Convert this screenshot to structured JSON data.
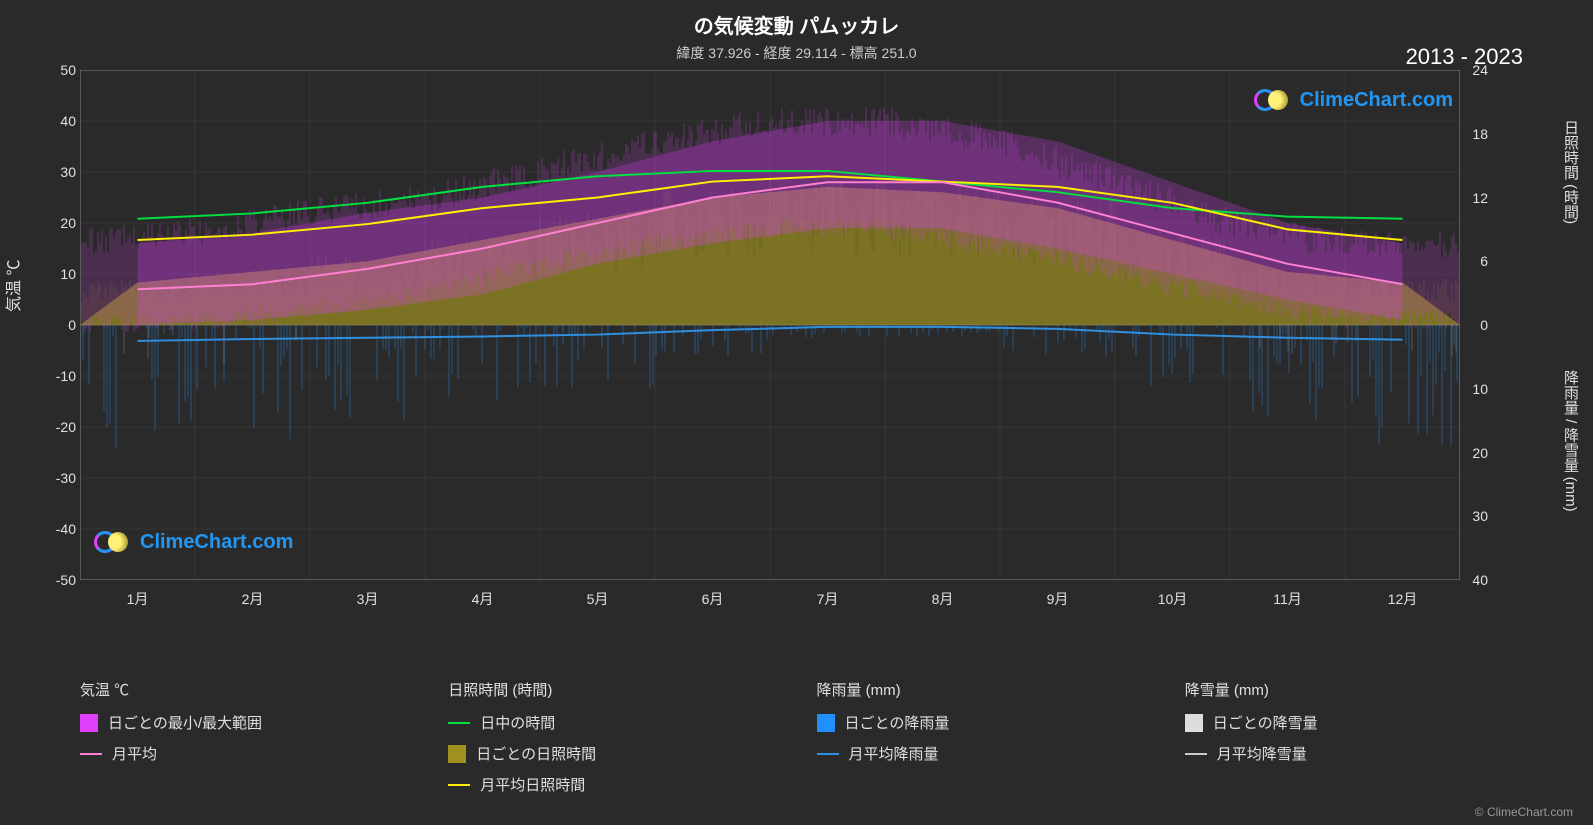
{
  "title": "の気候変動 パムッカレ",
  "subtitle": "緯度 37.926 - 経度 29.114 - 標高 251.0",
  "year_range": "2013 - 2023",
  "credit": "© ClimeChart.com",
  "watermark_text": "ClimeChart.com",
  "chart": {
    "background_color": "#2a2a2a",
    "plot_bg": "#2a2a2a",
    "grid_color": "#555555",
    "axis_color": "#888888",
    "text_color": "#e0e0e0",
    "months": [
      "1月",
      "2月",
      "3月",
      "4月",
      "5月",
      "6月",
      "7月",
      "8月",
      "9月",
      "10月",
      "11月",
      "12月"
    ],
    "left_axis": {
      "label": "気温 ℃",
      "min": -50,
      "max": 50,
      "step": 10,
      "ticks": [
        50,
        40,
        30,
        20,
        10,
        0,
        -10,
        -20,
        -30,
        -40,
        -50
      ]
    },
    "right_axis_top": {
      "label": "日照時間 (時間)",
      "min": 0,
      "max": 24,
      "step": 6,
      "ticks": [
        24,
        18,
        12,
        6,
        0
      ]
    },
    "right_axis_bottom": {
      "label": "降雨量 / 降雪量 (mm)",
      "min": 0,
      "max": 40,
      "step": 10,
      "ticks": [
        0,
        10,
        20,
        30,
        40
      ]
    },
    "series": {
      "temp_range": {
        "color": "#e040fb",
        "fill_opacity": 0.6,
        "min": [
          0,
          1,
          3,
          6,
          12,
          16,
          19,
          19,
          15,
          10,
          5,
          1
        ],
        "max": [
          16,
          18,
          22,
          25,
          30,
          36,
          40,
          40,
          36,
          28,
          20,
          16
        ]
      },
      "temp_avg": {
        "color": "#ff80d0",
        "width": 2,
        "values": [
          7,
          8,
          11,
          15,
          20,
          25,
          28,
          28,
          24,
          18,
          12,
          8
        ]
      },
      "daylight": {
        "color": "#00e040",
        "width": 2,
        "values": [
          10,
          10.5,
          11.5,
          13,
          14,
          14.5,
          14.5,
          13.5,
          12.5,
          11,
          10.2,
          10
        ]
      },
      "sunshine_daily": {
        "color": "#b0a020",
        "fill_opacity": 0.55,
        "values": [
          4,
          5,
          6,
          8,
          10,
          12,
          13,
          12.5,
          11,
          8,
          5,
          4
        ]
      },
      "sunshine_avg": {
        "color": "#ffee00",
        "width": 2,
        "values": [
          8,
          8.5,
          9.5,
          11,
          12,
          13.5,
          14,
          13.5,
          13,
          11.5,
          9,
          8
        ]
      },
      "rain_daily": {
        "color": "#2090ff",
        "fill_opacity": 0.35,
        "max_values": [
          20,
          18,
          15,
          12,
          10,
          5,
          2,
          2,
          5,
          10,
          15,
          20
        ]
      },
      "rain_avg": {
        "color": "#3090e0",
        "width": 2,
        "values": [
          2.5,
          2.2,
          2,
          1.8,
          1.5,
          0.8,
          0.3,
          0.3,
          0.6,
          1.5,
          2,
          2.3
        ]
      },
      "snow_daily": {
        "color": "#dddddd",
        "fill_opacity": 0.25
      },
      "snow_avg": {
        "color": "#cccccc",
        "width": 2
      }
    }
  },
  "legend": {
    "groups": [
      {
        "title": "気温 ℃",
        "items": [
          {
            "type": "swatch",
            "color": "#e040fb",
            "label": "日ごとの最小/最大範囲"
          },
          {
            "type": "line",
            "color": "#ff80d0",
            "label": "月平均"
          }
        ]
      },
      {
        "title": "日照時間 (時間)",
        "items": [
          {
            "type": "line",
            "color": "#00e040",
            "label": "日中の時間"
          },
          {
            "type": "swatch",
            "color": "#a09020",
            "label": "日ごとの日照時間"
          },
          {
            "type": "line",
            "color": "#ffee00",
            "label": "月平均日照時間"
          }
        ]
      },
      {
        "title": "降雨量 (mm)",
        "items": [
          {
            "type": "swatch",
            "color": "#2090ff",
            "label": "日ごとの降雨量"
          },
          {
            "type": "line",
            "color": "#3090e0",
            "label": "月平均降雨量"
          }
        ]
      },
      {
        "title": "降雪量 (mm)",
        "items": [
          {
            "type": "swatch",
            "color": "#dddddd",
            "label": "日ごとの降雪量"
          },
          {
            "type": "line",
            "color": "#cccccc",
            "label": "月平均降雪量"
          }
        ]
      }
    ]
  }
}
